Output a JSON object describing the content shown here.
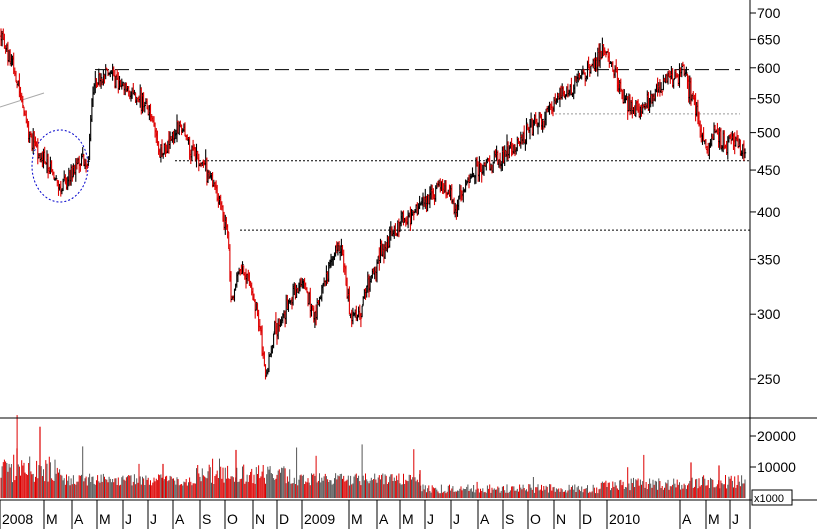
{
  "chart_data": {
    "type": "candlestick",
    "price_axis": {
      "scale": "log",
      "range": [
        220,
        720
      ],
      "ticks": [
        "700",
        "650",
        "600",
        "550",
        "500",
        "450",
        "400",
        "350",
        "300",
        "250"
      ]
    },
    "volume_axis": {
      "unit": "x1000",
      "ticks": [
        "20000",
        "10000"
      ],
      "range": [
        0,
        25000
      ]
    },
    "x_axis": {
      "labels": [
        "2008",
        "M",
        "A",
        "M",
        "J",
        "J",
        "A",
        "S",
        "O",
        "N",
        "D",
        "2009",
        "M",
        "A",
        "M",
        "J",
        "J",
        "A",
        "S",
        "O",
        "N",
        "D",
        "2010",
        "A",
        "M",
        "J"
      ]
    },
    "reference_lines": [
      {
        "style": "long-dash",
        "value": 597
      },
      {
        "style": "dotted",
        "value": 527
      },
      {
        "style": "dotted",
        "value": 462
      },
      {
        "style": "dotted",
        "value": 380
      }
    ],
    "annotations": [
      {
        "type": "dotted-circle",
        "color": "#0000cc"
      },
      {
        "type": "trendline",
        "color": "#aaaaaa"
      }
    ],
    "price_path": [
      [
        "2008-01-02",
        655
      ],
      [
        "2008-01-15",
        610
      ],
      [
        "2008-01-25",
        560
      ],
      [
        "2008-02-05",
        505
      ],
      [
        "2008-02-15",
        475
      ],
      [
        "2008-02-25",
        460
      ],
      [
        "2008-03-05",
        445
      ],
      [
        "2008-03-18",
        430
      ],
      [
        "2008-04-01",
        455
      ],
      [
        "2008-04-10",
        468
      ],
      [
        "2008-04-18",
        450
      ],
      [
        "2008-04-23",
        560
      ],
      [
        "2008-05-05",
        585
      ],
      [
        "2008-05-15",
        592
      ],
      [
        "2008-05-28",
        575
      ],
      [
        "2008-06-10",
        560
      ],
      [
        "2008-06-25",
        545
      ],
      [
        "2008-07-05",
        520
      ],
      [
        "2008-07-15",
        470
      ],
      [
        "2008-07-28",
        495
      ],
      [
        "2008-08-10",
        505
      ],
      [
        "2008-08-22",
        475
      ],
      [
        "2008-09-05",
        455
      ],
      [
        "2008-09-15",
        440
      ],
      [
        "2008-09-25",
        410
      ],
      [
        "2008-10-05",
        380
      ],
      [
        "2008-10-10",
        310
      ],
      [
        "2008-10-20",
        345
      ],
      [
        "2008-10-30",
        330
      ],
      [
        "2008-11-10",
        305
      ],
      [
        "2008-11-21",
        250
      ],
      [
        "2008-12-01",
        285
      ],
      [
        "2008-12-15",
        305
      ],
      [
        "2009-01-05",
        330
      ],
      [
        "2009-01-20",
        300
      ],
      [
        "2009-02-10",
        355
      ],
      [
        "2009-02-20",
        365
      ],
      [
        "2009-03-05",
        300
      ],
      [
        "2009-03-12",
        295
      ],
      [
        "2009-03-25",
        325
      ],
      [
        "2009-04-10",
        355
      ],
      [
        "2009-04-25",
        375
      ],
      [
        "2009-05-10",
        390
      ],
      [
        "2009-05-25",
        405
      ],
      [
        "2009-06-10",
        415
      ],
      [
        "2009-06-25",
        440
      ],
      [
        "2009-07-10",
        405
      ],
      [
        "2009-07-20",
        425
      ],
      [
        "2009-08-05",
        450
      ],
      [
        "2009-08-25",
        460
      ],
      [
        "2009-09-10",
        470
      ],
      [
        "2009-09-25",
        485
      ],
      [
        "2009-10-10",
        505
      ],
      [
        "2009-10-25",
        520
      ],
      [
        "2009-11-10",
        545
      ],
      [
        "2009-11-25",
        560
      ],
      [
        "2009-12-10",
        585
      ],
      [
        "2009-12-28",
        610
      ],
      [
        "2010-01-08",
        625
      ],
      [
        "2010-01-20",
        600
      ],
      [
        "2010-02-05",
        545
      ],
      [
        "2010-02-20",
        535
      ],
      [
        "2010-03-05",
        550
      ],
      [
        "2010-03-20",
        575
      ],
      [
        "2010-04-05",
        585
      ],
      [
        "2010-04-15",
        595
      ],
      [
        "2010-04-25",
        560
      ],
      [
        "2010-05-05",
        520
      ],
      [
        "2010-05-15",
        470
      ],
      [
        "2010-05-25",
        500
      ],
      [
        "2010-06-05",
        480
      ],
      [
        "2010-06-15",
        495
      ],
      [
        "2010-06-25",
        480
      ]
    ]
  }
}
